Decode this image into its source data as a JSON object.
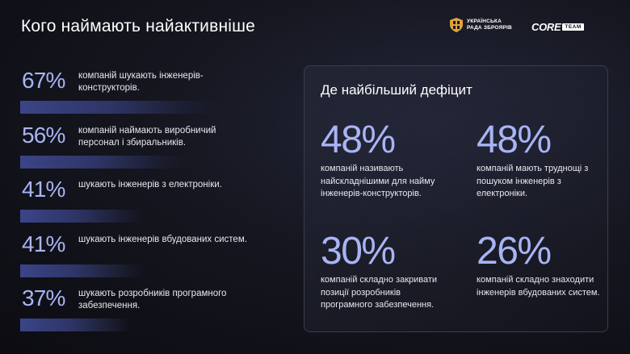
{
  "header": {
    "title": "Кого наймають найактивніше",
    "council_logo_line1": "УКРАЇНСЬКА",
    "council_logo_line2": "РАДА ЗБРОЯРІВ",
    "core_logo": "CORE",
    "team_logo": "TEAM"
  },
  "chart_data": {
    "type": "bar",
    "title": "Кого наймають найактивніше",
    "categories": [
      "компаній шукають інженерів-конструкторів.",
      "компаній наймають виробничий персонал і збиральників.",
      "шукають інженерів з електроніки.",
      "шукають інженерів вбудованих систем.",
      "шукають розробників програмного забезпечення."
    ],
    "values": [
      67,
      56,
      41,
      41,
      37
    ],
    "value_labels": [
      "67%",
      "56%",
      "41%",
      "41%",
      "37%"
    ],
    "unit": "%",
    "ylim": [
      0,
      100
    ],
    "orientation": "horizontal",
    "grid": false
  },
  "rows": [
    {
      "pct": "67%",
      "desc": "компаній шукають інженерів-конструкторів."
    },
    {
      "pct": "56%",
      "desc": "компаній наймають виробничий персонал і збиральників."
    },
    {
      "pct": "41%",
      "desc": "шукають інженерів з електроніки."
    },
    {
      "pct": "41%",
      "desc": "шукають інженерів вбудованих систем."
    },
    {
      "pct": "37%",
      "desc": "шукають розробників програмного забезпечення."
    }
  ],
  "deficit": {
    "title": "Де найбільший дефіцит",
    "stats": [
      {
        "value": "48%",
        "text": "компаній називають найскладнішими для найму інженерів-конструкторів."
      },
      {
        "value": "48%",
        "text": "компаній мають труднощі з пошуком інженерів з електроніки."
      },
      {
        "value": "30%",
        "text": "компаній складно закривати позиції розробників програмного забезпечення."
      },
      {
        "value": "26%",
        "text": "компаній складно знаходити інженерів вбудованих систем."
      }
    ]
  },
  "colors": {
    "accent": "#a9b4f5",
    "bar_start": "#3b4488",
    "background": "#15161f"
  }
}
